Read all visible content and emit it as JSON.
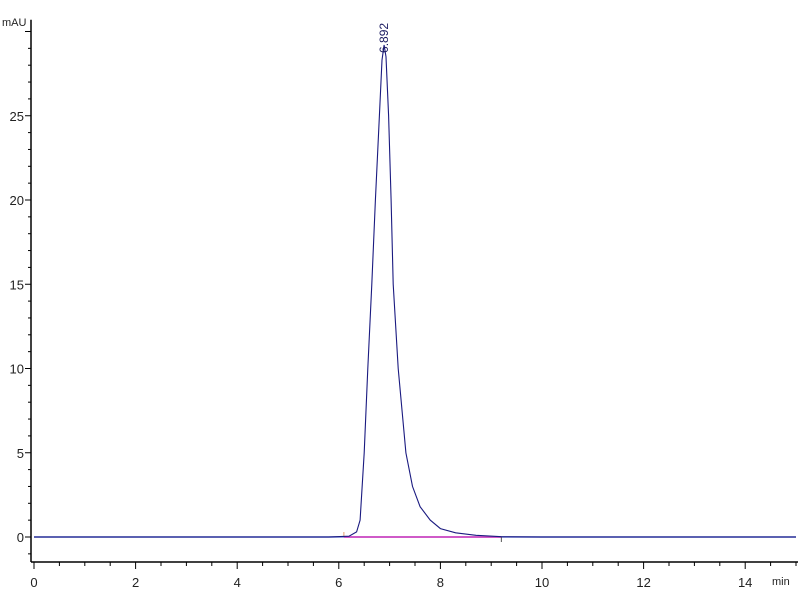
{
  "chart_data": {
    "type": "line",
    "title": "",
    "xlabel": "min",
    "ylabel": "mAU",
    "xlim": [
      0,
      15
    ],
    "ylim": [
      -1.4,
      30.7
    ],
    "x_ticks": [
      0,
      2,
      4,
      6,
      8,
      10,
      12,
      14
    ],
    "y_ticks": [
      0,
      5,
      10,
      15,
      20,
      25
    ],
    "grid": false,
    "colors": {
      "signal": "#1a1a80",
      "baseline_fill": "#5b6fd0",
      "integration_baseline": "#e040c0",
      "axis": "#000000"
    },
    "series": [
      {
        "x": [
          0,
          5.8,
          6.2,
          6.35,
          6.42,
          6.5,
          6.57,
          6.65,
          6.72,
          6.8,
          6.85,
          6.892,
          6.93,
          6.98,
          7.03,
          7.07,
          7.17,
          7.32,
          7.45,
          7.6,
          7.8,
          8.0,
          8.3,
          8.7,
          9.2,
          10,
          15
        ],
        "y": [
          0,
          0,
          0.05,
          0.3,
          1,
          5,
          10,
          15,
          20,
          25,
          28.3,
          29.2,
          28.5,
          25,
          20,
          15,
          10,
          5,
          3,
          1.8,
          1.0,
          0.5,
          0.25,
          0.1,
          0.02,
          0,
          0
        ]
      }
    ],
    "integration_baseline": {
      "x": [
        6.1,
        9.2
      ],
      "y": [
        0,
        0
      ]
    },
    "annotations": [
      {
        "text": "6.892",
        "x": 6.892,
        "y": 29.2
      }
    ]
  }
}
